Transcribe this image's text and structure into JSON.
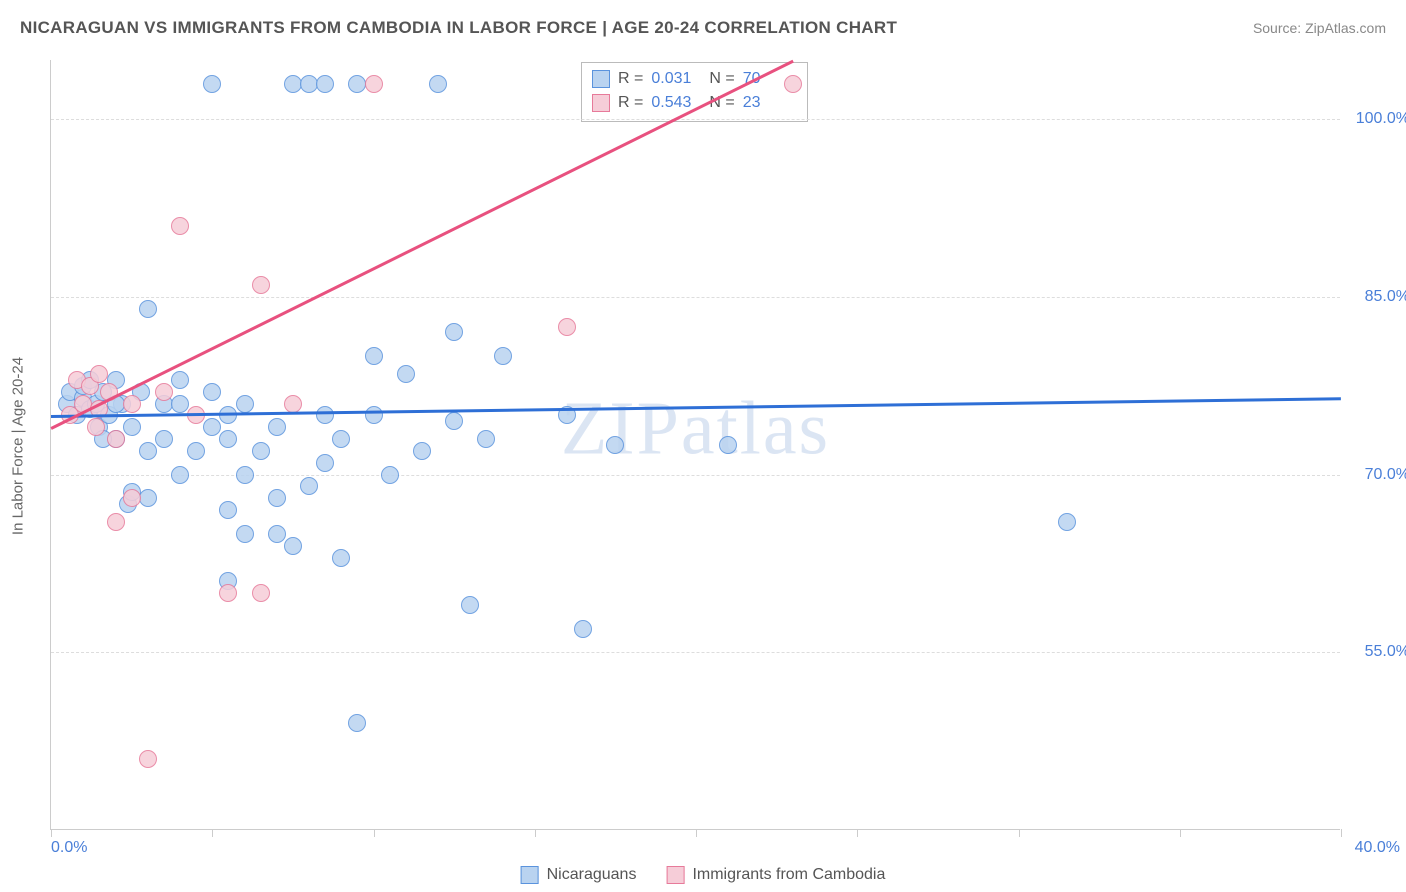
{
  "title": "NICARAGUAN VS IMMIGRANTS FROM CAMBODIA IN LABOR FORCE | AGE 20-24 CORRELATION CHART",
  "source": "Source: ZipAtlas.com",
  "watermark": "ZIPatlas",
  "ylabel": "In Labor Force | Age 20-24",
  "chart": {
    "type": "scatter",
    "xlim": [
      0,
      40
    ],
    "ylim": [
      40,
      105
    ],
    "xticks": [
      0,
      5,
      10,
      15,
      20,
      25,
      30,
      35,
      40
    ],
    "yticks": [
      55,
      70,
      85,
      100
    ],
    "ytick_labels": [
      "55.0%",
      "70.0%",
      "85.0%",
      "100.0%"
    ],
    "xtick_left": "0.0%",
    "xtick_right": "40.0%",
    "background_color": "#ffffff",
    "grid_color": "#dddddd",
    "point_radius": 9,
    "series": [
      {
        "name": "Nicaraguans",
        "fill": "#b9d3f0",
        "stroke": "#5a93dd",
        "trend_color": "#2e6fd6",
        "R": "0.031",
        "N": "70",
        "trend": {
          "x1": 0,
          "y1": 75.0,
          "x2": 40,
          "y2": 76.5
        },
        "points": [
          [
            0.5,
            76
          ],
          [
            0.6,
            77
          ],
          [
            0.8,
            75
          ],
          [
            1.0,
            76.5
          ],
          [
            1.0,
            77.5
          ],
          [
            1.2,
            75.5
          ],
          [
            1.2,
            78
          ],
          [
            1.4,
            76
          ],
          [
            1.5,
            74
          ],
          [
            1.6,
            77
          ],
          [
            1.8,
            75
          ],
          [
            2.0,
            73
          ],
          [
            2.0,
            78
          ],
          [
            2.2,
            76
          ],
          [
            2.4,
            67.5
          ],
          [
            2.5,
            68.5
          ],
          [
            2.5,
            74
          ],
          [
            3.0,
            68
          ],
          [
            3.0,
            84
          ],
          [
            3.5,
            73
          ],
          [
            3.5,
            76
          ],
          [
            4.0,
            70
          ],
          [
            4.0,
            76
          ],
          [
            4.0,
            78
          ],
          [
            4.5,
            72
          ],
          [
            5.0,
            103
          ],
          [
            5.0,
            74
          ],
          [
            5.0,
            77
          ],
          [
            5.5,
            61
          ],
          [
            5.5,
            67
          ],
          [
            5.5,
            73
          ],
          [
            6.0,
            65
          ],
          [
            6.0,
            70
          ],
          [
            6.0,
            76
          ],
          [
            6.5,
            72
          ],
          [
            7.0,
            68
          ],
          [
            7.0,
            74
          ],
          [
            7.5,
            64
          ],
          [
            7.5,
            103
          ],
          [
            8.0,
            69
          ],
          [
            8.0,
            103
          ],
          [
            8.5,
            103
          ],
          [
            8.5,
            71
          ],
          [
            9.0,
            63
          ],
          [
            9.0,
            73
          ],
          [
            9.5,
            49
          ],
          [
            9.5,
            103
          ],
          [
            10.0,
            75
          ],
          [
            10.0,
            80
          ],
          [
            10.5,
            70
          ],
          [
            11.0,
            78.5
          ],
          [
            11.5,
            72
          ],
          [
            12.0,
            103
          ],
          [
            12.5,
            74.5
          ],
          [
            12.5,
            82
          ],
          [
            13.0,
            59
          ],
          [
            13.5,
            73
          ],
          [
            14.0,
            80
          ],
          [
            16.0,
            75
          ],
          [
            16.5,
            57
          ],
          [
            17.5,
            72.5
          ],
          [
            21.0,
            72.5
          ],
          [
            31.5,
            66
          ],
          [
            5.5,
            75
          ],
          [
            7.0,
            65
          ],
          [
            8.5,
            75
          ],
          [
            3.0,
            72
          ],
          [
            2.8,
            77
          ],
          [
            1.6,
            73
          ],
          [
            2.0,
            76
          ]
        ]
      },
      {
        "name": "Immigrants from Cambodia",
        "fill": "#f6cdd8",
        "stroke": "#e77a9a",
        "trend_color": "#e8517f",
        "R": "0.543",
        "N": "23",
        "trend": {
          "x1": 0,
          "y1": 74.0,
          "x2": 23,
          "y2": 105.0
        },
        "points": [
          [
            0.6,
            75
          ],
          [
            0.8,
            78
          ],
          [
            1.0,
            76
          ],
          [
            1.2,
            77.5
          ],
          [
            1.4,
            74
          ],
          [
            1.5,
            78.5
          ],
          [
            1.5,
            75.5
          ],
          [
            1.8,
            77
          ],
          [
            2.0,
            73
          ],
          [
            2.0,
            66
          ],
          [
            2.5,
            76
          ],
          [
            2.5,
            68
          ],
          [
            3.0,
            46
          ],
          [
            3.5,
            77
          ],
          [
            4.0,
            91
          ],
          [
            4.5,
            75
          ],
          [
            5.5,
            60
          ],
          [
            6.5,
            86
          ],
          [
            6.5,
            60
          ],
          [
            7.5,
            76
          ],
          [
            10.0,
            103
          ],
          [
            16.0,
            82.5
          ],
          [
            23.0,
            103
          ]
        ]
      }
    ]
  },
  "legend": {
    "series1": "Nicaraguans",
    "series2": "Immigrants from Cambodia"
  }
}
